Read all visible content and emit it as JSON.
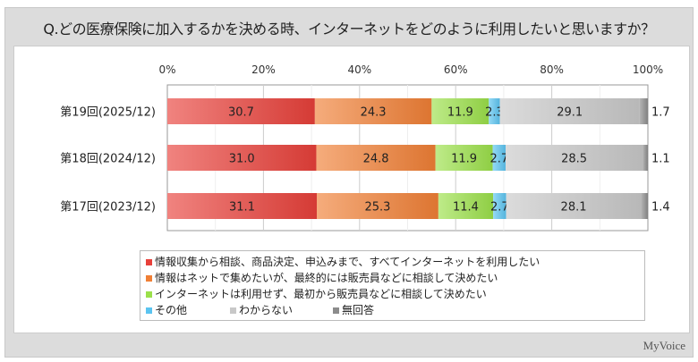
{
  "title": "Q.どの医療保険に加入するかを決める時、インターネットをどのように利用したいと思いますか？",
  "brand": "MyVoice",
  "chart_data": {
    "type": "bar",
    "orientation": "horizontal",
    "stacked": true,
    "xlim": [
      0,
      100
    ],
    "x_ticks": [
      "0%",
      "20%",
      "40%",
      "60%",
      "80%",
      "100%"
    ],
    "categories": [
      "第19回(2025/12)",
      "第18回(2024/12)",
      "第17回(2023/12)"
    ],
    "series": [
      {
        "name": "情報収集から相談、商品決定、申込みまで、すべてインターネットを利用したい",
        "color": "#e8403a",
        "values": [
          30.7,
          31.0,
          31.1
        ]
      },
      {
        "name": "情報はネットで集めたいが、最終的には販売員などに相談して決めたい",
        "color": "#f07f35",
        "values": [
          24.3,
          24.8,
          25.3
        ]
      },
      {
        "name": "インターネットは利用せず、最初から販売員などに相談して決めたい",
        "color": "#9be04a",
        "values": [
          11.9,
          11.9,
          11.4
        ]
      },
      {
        "name": "その他",
        "color": "#5bc4f0",
        "values": [
          2.3,
          2.7,
          2.7
        ]
      },
      {
        "name": "わからない",
        "color": "#c8c8c8",
        "values": [
          29.1,
          28.5,
          28.1
        ]
      },
      {
        "name": "無回答",
        "color": "#8c8c8c",
        "values": [
          1.7,
          1.1,
          1.4
        ]
      }
    ],
    "data_labels": [
      [
        "30.7",
        "24.3",
        "11.9",
        "2.3",
        "29.1",
        "1.7"
      ],
      [
        "31.0",
        "24.8",
        "11.9",
        "2.7",
        "28.5",
        "1.1"
      ],
      [
        "31.1",
        "25.3",
        "11.4",
        "2.7",
        "28.1",
        "1.4"
      ]
    ],
    "legend_position": "bottom",
    "grid": true
  }
}
